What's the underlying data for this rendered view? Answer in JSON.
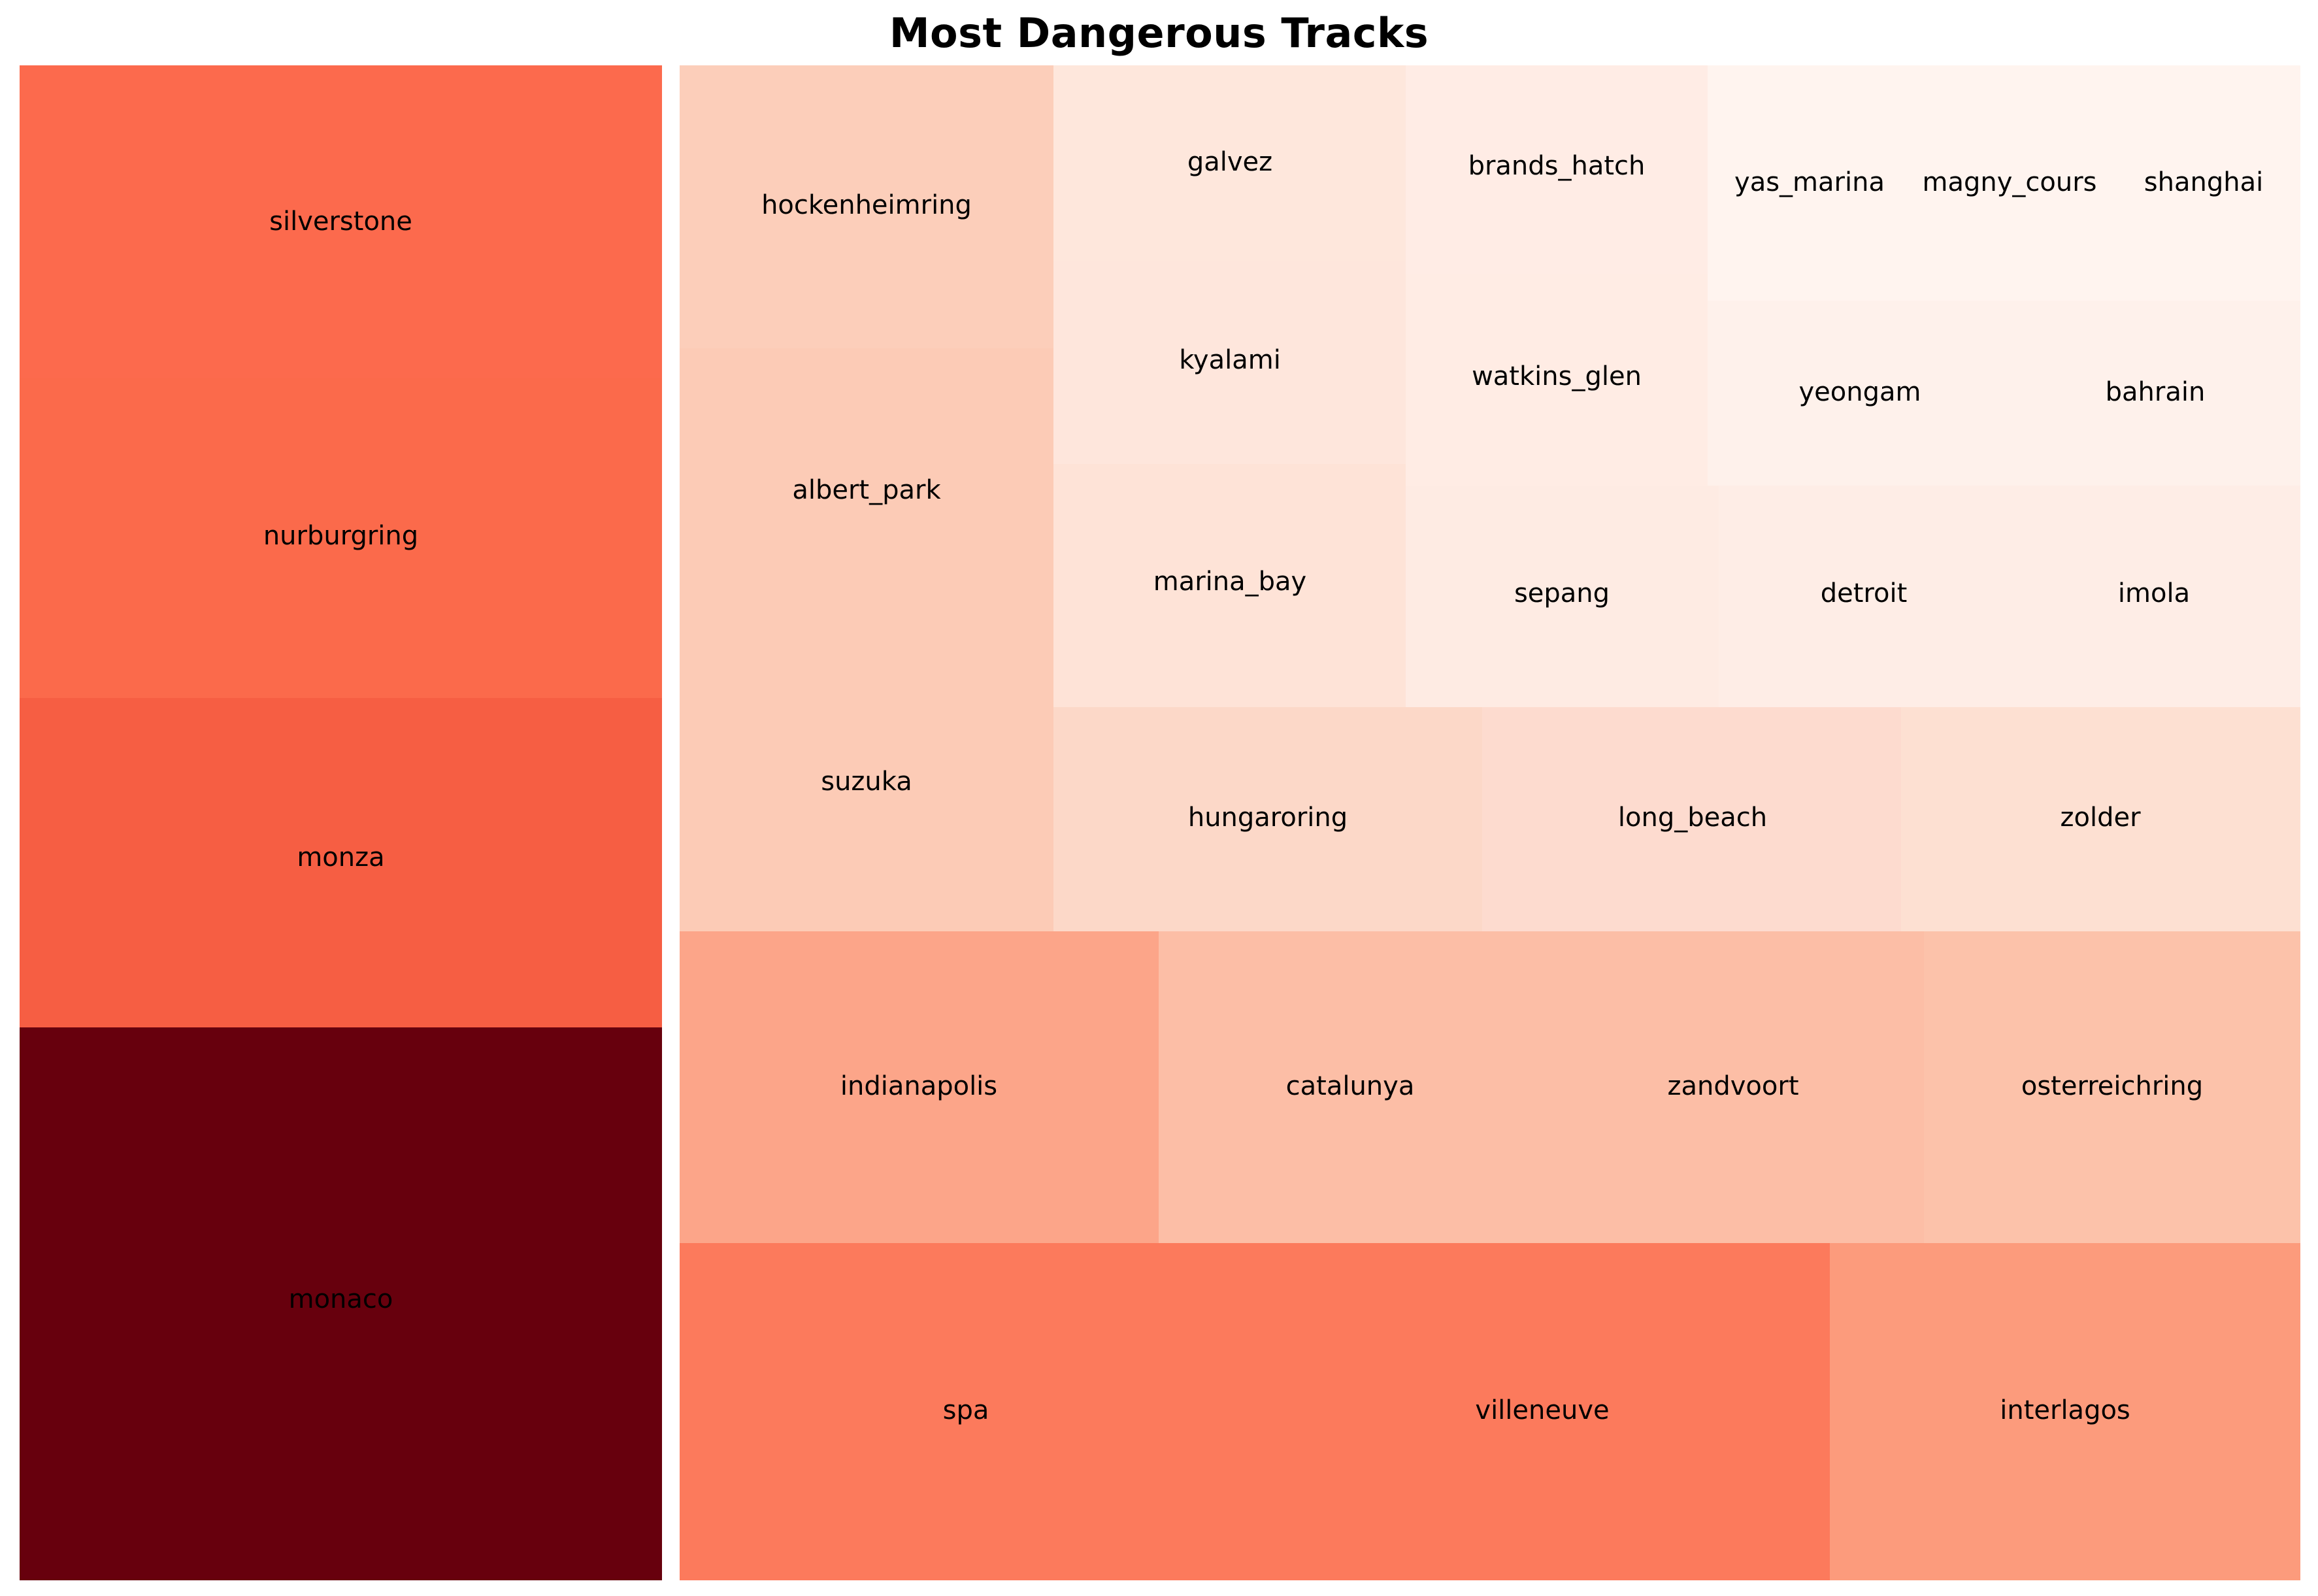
{
  "chart_data": {
    "type": "treemap",
    "title": "Most Dangerous Tracks",
    "color_scale": "Reds",
    "items": [
      {
        "label": "monaco",
        "color": "#67000d"
      },
      {
        "label": "monza",
        "color": "#f65e43"
      },
      {
        "label": "nurburgring",
        "color": "#fb6a4b"
      },
      {
        "label": "silverstone",
        "color": "#fc6a4d"
      },
      {
        "label": "spa",
        "color": "#fc7a5c"
      },
      {
        "label": "villeneuve",
        "color": "#fc7a5c"
      },
      {
        "label": "interlagos",
        "color": "#fc9b7c"
      },
      {
        "label": "indianapolis",
        "color": "#fca589"
      },
      {
        "label": "catalunya",
        "color": "#fcbea6"
      },
      {
        "label": "zandvoort",
        "color": "#fcbea6"
      },
      {
        "label": "osterreichring",
        "color": "#fcc2aa"
      },
      {
        "label": "suzuka",
        "color": "#fccbb6"
      },
      {
        "label": "albert_park",
        "color": "#fccbb6"
      },
      {
        "label": "hockenheimring",
        "color": "#fcceba"
      },
      {
        "label": "hungaroring",
        "color": "#fcd8c8"
      },
      {
        "label": "long_beach",
        "color": "#fddbcf"
      },
      {
        "label": "zolder",
        "color": "#fde0d2"
      },
      {
        "label": "marina_bay",
        "color": "#fee3d7"
      },
      {
        "label": "kyalami",
        "color": "#fee6dc"
      },
      {
        "label": "galvez",
        "color": "#fee7dc"
      },
      {
        "label": "sepang",
        "color": "#feebe3"
      },
      {
        "label": "detroit",
        "color": "#feede6"
      },
      {
        "label": "imola",
        "color": "#feede6"
      },
      {
        "label": "watkins_glen",
        "color": "#ffece4"
      },
      {
        "label": "brands_hatch",
        "color": "#ffece5"
      },
      {
        "label": "yeongam",
        "color": "#fef1eb"
      },
      {
        "label": "bahrain",
        "color": "#fef1eb"
      },
      {
        "label": "yas_marina",
        "color": "#fff4ef"
      },
      {
        "label": "magny_cours",
        "color": "#fff4ef"
      },
      {
        "label": "shanghai",
        "color": "#fff4ef"
      }
    ]
  }
}
